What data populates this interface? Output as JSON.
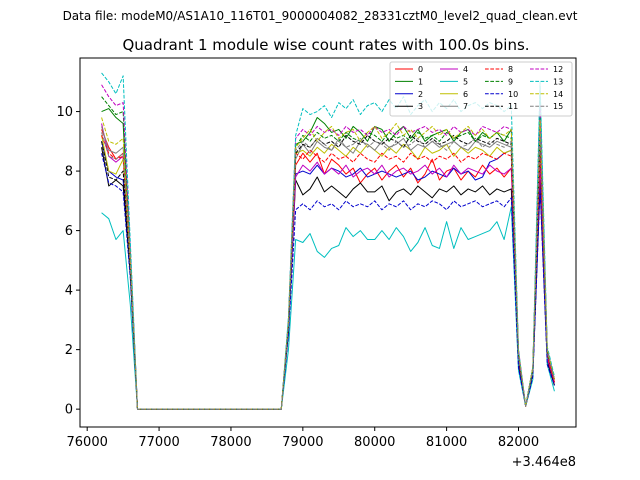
{
  "chart_data": {
    "type": "line",
    "suptitle": "Data file: modeM0/AS1A10_116T01_9000004082_28331cztM0_level2_quad_clean.evt",
    "title": "Quadrant 1 module wise count rates with 100.0s bins.",
    "xlabel": "",
    "ylabel": "",
    "x_offset_label": "+3.464e8",
    "xlim": [
      75900,
      82800
    ],
    "ylim": [
      -0.6,
      11.8
    ],
    "xticks": [
      76000,
      77000,
      78000,
      79000,
      80000,
      81000,
      82000
    ],
    "yticks": [
      0,
      2,
      4,
      6,
      8,
      10
    ],
    "grid": false,
    "legend_position": "upper-right",
    "legend_columns": 4,
    "x": [
      76200,
      76300,
      76400,
      76500,
      76600,
      76700,
      78700,
      78800,
      78900,
      79000,
      79100,
      79200,
      79300,
      79400,
      79500,
      79600,
      79700,
      79800,
      79900,
      80000,
      80100,
      80200,
      80300,
      80400,
      80500,
      80600,
      80700,
      80800,
      80900,
      81000,
      81100,
      81200,
      81300,
      81400,
      81500,
      81600,
      81700,
      81800,
      81900,
      82000,
      82100,
      82200,
      82300,
      82400,
      82500
    ],
    "series": [
      {
        "name": "0",
        "color": "#ff0000",
        "dash": "solid",
        "values": [
          9.4,
          8.8,
          8.4,
          8.6,
          4.8,
          0,
          0,
          2.8,
          8.2,
          8.6,
          8.3,
          8.6,
          7.9,
          8.4,
          8.2,
          7.9,
          8.1,
          7.6,
          7.9,
          8.1,
          7.7,
          8.0,
          8.2,
          7.8,
          8.1,
          7.6,
          7.9,
          8.4,
          7.7,
          8.0,
          8.1,
          7.7,
          8.0,
          7.8,
          8.2,
          7.9,
          8.1,
          7.8,
          8.1,
          1.7,
          0.1,
          1.4,
          9.1,
          1.8,
          0.9
        ]
      },
      {
        "name": "1",
        "color": "#008000",
        "dash": "solid",
        "values": [
          10.0,
          10.1,
          9.8,
          9.6,
          5.0,
          0,
          0,
          2.9,
          8.9,
          9.0,
          9.3,
          9.8,
          9.6,
          9.3,
          9.4,
          9.1,
          9.5,
          9.3,
          9.0,
          9.5,
          9.4,
          9.0,
          9.3,
          9.5,
          9.1,
          9.4,
          9.0,
          9.2,
          9.3,
          9.4,
          9.0,
          9.3,
          9.4,
          9.0,
          9.3,
          9.1,
          9.3,
          9.0,
          9.4,
          1.9,
          0.1,
          1.4,
          9.8,
          2.0,
          1.0
        ]
      },
      {
        "name": "2",
        "color": "#0000cd",
        "dash": "solid",
        "values": [
          9.0,
          8.0,
          7.8,
          7.7,
          4.5,
          0,
          0,
          2.7,
          7.9,
          8.0,
          7.9,
          8.2,
          7.9,
          8.1,
          8.0,
          7.8,
          7.9,
          8.1,
          7.8,
          7.9,
          8.0,
          7.9,
          7.8,
          7.9,
          8.0,
          7.7,
          7.8,
          8.0,
          7.9,
          7.8,
          8.1,
          7.9,
          8.0,
          7.7,
          7.8,
          8.3,
          8.4,
          8.6,
          8.7,
          1.7,
          0.1,
          1.2,
          7.7,
          1.7,
          0.8
        ]
      },
      {
        "name": "3",
        "color": "#000000",
        "dash": "solid",
        "values": [
          8.8,
          7.5,
          7.7,
          7.5,
          4.6,
          0,
          0,
          2.6,
          7.7,
          7.2,
          7.4,
          7.8,
          7.3,
          7.5,
          7.3,
          7.1,
          7.4,
          7.6,
          7.3,
          7.3,
          7.5,
          7.0,
          7.3,
          7.4,
          7.2,
          7.5,
          7.3,
          7.1,
          7.4,
          7.3,
          7.5,
          7.2,
          7.4,
          7.3,
          7.5,
          7.2,
          7.4,
          7.3,
          7.4,
          1.5,
          0.1,
          1.2,
          7.6,
          1.6,
          0.8
        ]
      },
      {
        "name": "4",
        "color": "#c000c0",
        "dash": "solid",
        "values": [
          9.6,
          8.5,
          8.3,
          8.5,
          4.9,
          0,
          0,
          2.8,
          7.8,
          8.2,
          8.0,
          8.3,
          7.9,
          8.1,
          7.9,
          8.2,
          7.8,
          8.0,
          8.1,
          7.9,
          8.2,
          7.8,
          8.0,
          8.1,
          7.9,
          8.0,
          8.2,
          7.9,
          8.1,
          7.8,
          8.2,
          7.9,
          8.1,
          8.0,
          7.9,
          8.2,
          8.0,
          7.9,
          8.1,
          1.7,
          0.1,
          1.3,
          8.2,
          1.7,
          0.9
        ]
      },
      {
        "name": "5",
        "color": "#00bfbf",
        "dash": "solid",
        "values": [
          6.6,
          6.4,
          5.7,
          6.0,
          3.5,
          0,
          0,
          2.0,
          5.7,
          5.6,
          5.9,
          5.3,
          5.1,
          5.4,
          5.5,
          6.1,
          5.8,
          6.0,
          5.7,
          5.7,
          6.0,
          5.7,
          6.1,
          5.8,
          5.3,
          5.6,
          6.1,
          5.5,
          5.4,
          6.3,
          5.4,
          6.1,
          5.7,
          5.8,
          5.9,
          6.0,
          6.3,
          5.7,
          6.8,
          1.3,
          0.1,
          1.0,
          10.8,
          1.5,
          0.6
        ]
      },
      {
        "name": "6",
        "color": "#bfbf00",
        "dash": "solid",
        "values": [
          9.2,
          8.0,
          7.9,
          8.4,
          4.7,
          0,
          0,
          2.9,
          8.6,
          8.7,
          8.5,
          8.8,
          8.6,
          8.9,
          8.7,
          8.5,
          8.8,
          8.6,
          8.9,
          8.7,
          8.5,
          8.8,
          8.6,
          8.9,
          8.7,
          8.4,
          8.8,
          8.6,
          8.7,
          8.9,
          8.5,
          8.8,
          8.6,
          8.8,
          8.7,
          8.5,
          8.8,
          8.6,
          8.7,
          1.8,
          0.1,
          1.3,
          9.0,
          1.9,
          1.0
        ]
      },
      {
        "name": "7",
        "color": "#808080",
        "dash": "solid",
        "values": [
          9.5,
          8.7,
          8.6,
          8.8,
          4.9,
          0,
          0,
          2.9,
          8.4,
          8.9,
          8.6,
          9.0,
          8.8,
          8.7,
          9.1,
          8.8,
          8.6,
          9.0,
          8.9,
          8.7,
          9.0,
          8.8,
          8.9,
          9.1,
          8.7,
          8.9,
          8.8,
          9.0,
          8.8,
          8.9,
          9.0,
          8.8,
          8.7,
          9.0,
          8.9,
          8.8,
          9.0,
          8.9,
          8.8,
          1.9,
          0.1,
          1.4,
          9.4,
          1.9,
          1.0
        ]
      },
      {
        "name": "8",
        "color": "#ff0000",
        "dash": "dashed",
        "values": [
          9.2,
          8.6,
          8.4,
          8.5,
          4.8,
          0,
          0,
          2.8,
          8.6,
          8.4,
          8.7,
          8.5,
          8.3,
          8.6,
          8.4,
          8.5,
          8.3,
          8.6,
          8.4,
          8.3,
          8.6,
          8.4,
          8.5,
          8.3,
          8.6,
          8.4,
          8.5,
          8.3,
          8.5,
          8.4,
          8.6,
          8.3,
          8.5,
          8.4,
          8.6,
          8.5,
          8.4,
          8.6,
          8.5,
          1.8,
          0.1,
          1.3,
          8.7,
          1.8,
          0.9
        ]
      },
      {
        "name": "9",
        "color": "#008000",
        "dash": "dashed",
        "values": [
          10.5,
          10.2,
          9.9,
          10.0,
          5.2,
          0,
          0,
          3.0,
          8.8,
          9.2,
          9.0,
          9.3,
          9.1,
          9.2,
          9.0,
          9.3,
          9.1,
          9.0,
          9.3,
          9.2,
          9.0,
          9.3,
          9.1,
          9.2,
          9.0,
          9.3,
          9.1,
          9.2,
          9.0,
          9.3,
          9.1,
          9.2,
          9.3,
          9.0,
          9.2,
          9.1,
          9.3,
          9.2,
          9.1,
          1.9,
          0.1,
          1.4,
          9.9,
          2.0,
          1.0
        ]
      },
      {
        "name": "10",
        "color": "#0000cd",
        "dash": "dashed",
        "values": [
          8.6,
          7.6,
          7.5,
          7.3,
          4.4,
          0,
          0,
          2.5,
          6.7,
          6.9,
          6.7,
          7.0,
          6.8,
          6.9,
          6.7,
          7.0,
          6.8,
          6.9,
          6.8,
          7.0,
          6.7,
          6.9,
          6.8,
          7.0,
          6.7,
          6.9,
          6.8,
          7.0,
          6.9,
          6.7,
          7.0,
          6.8,
          6.9,
          7.0,
          6.8,
          6.9,
          7.0,
          6.8,
          7.1,
          1.4,
          0.1,
          1.1,
          7.4,
          1.5,
          0.8
        ]
      },
      {
        "name": "11",
        "color": "#000000",
        "dash": "dashed",
        "values": [
          9.0,
          7.8,
          7.7,
          8.0,
          4.6,
          0,
          0,
          2.8,
          8.6,
          8.9,
          8.8,
          9.1,
          8.9,
          9.0,
          8.8,
          9.2,
          9.0,
          8.9,
          9.2,
          9.0,
          8.9,
          9.1,
          9.0,
          8.8,
          9.2,
          9.0,
          8.9,
          9.1,
          8.9,
          9.0,
          9.2,
          9.0,
          8.9,
          9.1,
          9.0,
          8.9,
          9.1,
          9.0,
          8.9,
          1.8,
          0.1,
          1.3,
          9.2,
          1.9,
          1.0
        ]
      },
      {
        "name": "12",
        "color": "#c000c0",
        "dash": "dashed",
        "values": [
          10.9,
          10.5,
          10.2,
          10.3,
          5.4,
          0,
          0,
          3.0,
          9.1,
          9.4,
          9.2,
          9.5,
          9.3,
          9.4,
          9.2,
          9.5,
          9.3,
          9.4,
          9.2,
          9.5,
          9.3,
          9.4,
          9.2,
          9.5,
          9.3,
          9.4,
          9.5,
          9.3,
          9.4,
          9.2,
          9.5,
          9.3,
          9.4,
          9.2,
          9.5,
          9.4,
          9.3,
          9.5,
          9.4,
          2.0,
          0.1,
          1.4,
          10.2,
          2.0,
          1.0
        ]
      },
      {
        "name": "13",
        "color": "#00bfbf",
        "dash": "dashed",
        "values": [
          11.3,
          11.0,
          10.6,
          11.2,
          5.6,
          0,
          0,
          3.1,
          9.2,
          10.1,
          9.9,
          10.0,
          10.2,
          9.8,
          10.3,
          10.1,
          10.4,
          9.9,
          10.2,
          10.3,
          10.0,
          10.4,
          10.1,
          10.5,
          9.9,
          10.2,
          10.4,
          10.0,
          10.3,
          10.1,
          10.4,
          10.0,
          10.2,
          10.3,
          10.1,
          10.3,
          10.2,
          10.0,
          10.2,
          2.0,
          0.1,
          1.4,
          11.0,
          2.1,
          1.1
        ]
      },
      {
        "name": "14",
        "color": "#bfbf00",
        "dash": "dashed",
        "values": [
          9.8,
          9.0,
          8.9,
          9.1,
          5.0,
          0,
          0,
          2.9,
          8.8,
          9.1,
          9.4,
          9.0,
          9.3,
          9.5,
          9.1,
          9.3,
          9.4,
          9.0,
          9.3,
          9.5,
          9.1,
          9.3,
          9.6,
          9.2,
          9.4,
          9.1,
          9.3,
          9.5,
          9.2,
          9.4,
          9.1,
          9.3,
          9.5,
          9.2,
          9.4,
          9.1,
          9.3,
          9.2,
          9.4,
          1.9,
          0.1,
          1.4,
          9.7,
          2.0,
          1.0
        ]
      },
      {
        "name": "15",
        "color": "#808080",
        "dash": "dashed",
        "values": [
          9.3,
          8.5,
          8.4,
          8.6,
          4.8,
          0,
          0,
          2.8,
          8.7,
          9.0,
          8.8,
          9.1,
          8.9,
          8.7,
          9.0,
          8.8,
          8.9,
          9.1,
          8.8,
          9.0,
          8.9,
          8.7,
          9.0,
          8.8,
          8.9,
          9.1,
          8.8,
          9.0,
          8.9,
          8.7,
          9.0,
          8.8,
          8.9,
          9.1,
          8.8,
          9.0,
          8.9,
          8.8,
          9.0,
          1.8,
          0.1,
          1.3,
          9.3,
          1.9,
          1.0
        ]
      }
    ]
  }
}
